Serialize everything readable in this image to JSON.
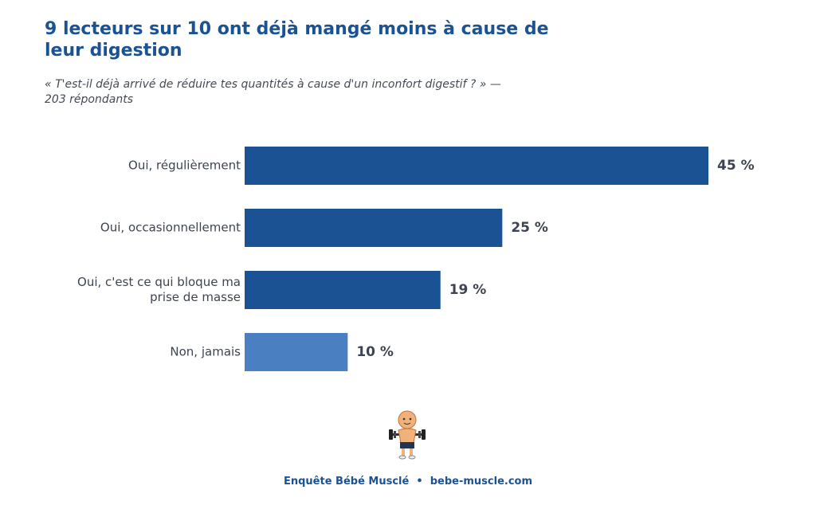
{
  "chart_data": {
    "type": "hbar",
    "title": "9 lecteurs sur 10 ont déjà mangé moins à cause de leur digestion",
    "subtitle": "« T'est-il déjà arrivé de réduire tes quantités à cause d'un inconfort digestif ? » — 203 répondants",
    "categories": [
      "Oui, régulièrement",
      "Oui, occasionnellement",
      "Oui, c'est ce qui bloque ma prise de masse",
      "Non, jamais"
    ],
    "values": [
      45,
      25,
      19,
      10
    ],
    "value_labels": [
      "45 %",
      "25 %",
      "19 %",
      "10 %"
    ],
    "colors": [
      "#1a5294",
      "#1a5294",
      "#1a5294",
      "#4a7fc1"
    ],
    "footer": "Enquête Bébé Musclé  •  bebe-muscle.com"
  }
}
